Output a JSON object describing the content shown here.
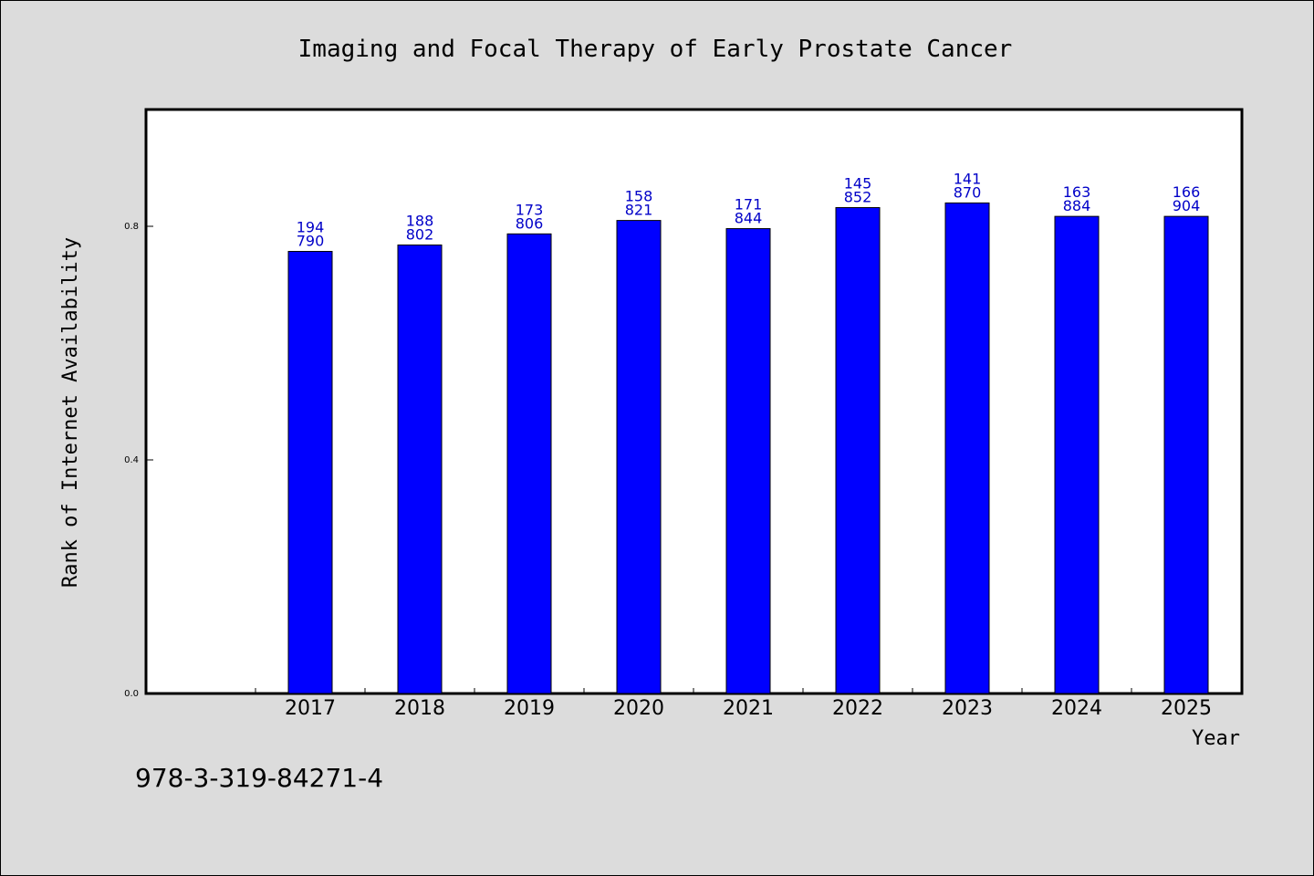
{
  "chart_data": {
    "type": "bar",
    "title": "Imaging and Focal Therapy of Early Prostate Cancer",
    "xlabel": "Year",
    "ylabel": "Rank of Internet Availability",
    "categories": [
      "2017",
      "2018",
      "2019",
      "2020",
      "2021",
      "2022",
      "2023",
      "2024",
      "2025"
    ],
    "values": [
      0.757,
      0.768,
      0.787,
      0.81,
      0.796,
      0.832,
      0.84,
      0.817,
      0.817
    ],
    "label_top": [
      "194",
      "188",
      "173",
      "158",
      "171",
      "145",
      "141",
      "163",
      "166"
    ],
    "label_bottom": [
      "790",
      "802",
      "806",
      "821",
      "844",
      "852",
      "870",
      "884",
      "904"
    ],
    "yticks": [
      "0.0",
      "0.4",
      "0.8"
    ],
    "ytick_values": [
      0.0,
      0.4,
      0.8
    ],
    "ylim": [
      0,
      1.0
    ],
    "grid": false,
    "bar_color": "#0000ff",
    "label_color": "#0000c8"
  },
  "footer": {
    "isbn": "978-3-319-84271-4"
  }
}
